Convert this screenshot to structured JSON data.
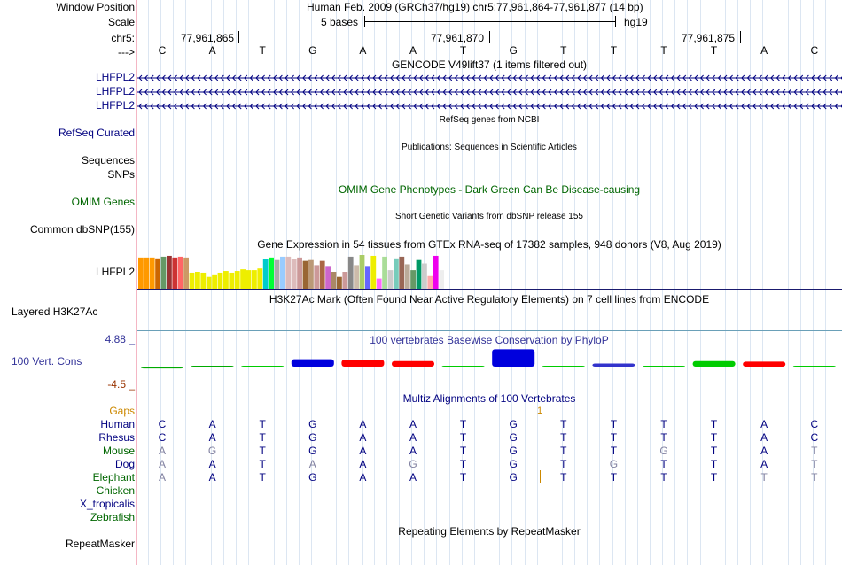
{
  "header": {
    "window_position_label": "Window Position",
    "scale_label": "Scale",
    "chrom_label": "chr5:",
    "arrow_label": "--->",
    "window_position_value": "Human Feb. 2009 (GRCh37/hg19)   chr5:77,961,864-77,961,877 (14 bp)",
    "scale_value": "5 bases",
    "assembly": "hg19",
    "coordinates": [
      "77,961,865",
      "77,961,870",
      "77,961,875"
    ]
  },
  "reference_bases": [
    "C",
    "A",
    "T",
    "G",
    "A",
    "A",
    "T",
    "G",
    "T",
    "T",
    "T",
    "T",
    "A",
    "C"
  ],
  "tracks": {
    "gencode": {
      "title": "GENCODE V49lift37 (1 items filtered out)",
      "items": [
        "LHFPL2",
        "LHFPL2",
        "LHFPL2"
      ]
    },
    "refseq": {
      "title": "RefSeq genes from NCBI",
      "label": "RefSeq Curated"
    },
    "publications": {
      "title": "Publications: Sequences in Scientific Articles",
      "label1": "Sequences",
      "label2": "SNPs"
    },
    "omim": {
      "title": "OMIM Gene Phenotypes - Dark Green Can Be Disease-causing",
      "label": "OMIM Genes"
    },
    "dbsnp": {
      "title": "Short Genetic Variants from dbSNP release 155",
      "label": "Common dbSNP(155)"
    },
    "gtex": {
      "title": "Gene Expression in 54 tissues from GTEx RNA-seq of 17382 samples, 948 donors (V8, Aug 2019)",
      "label": "LHFPL2",
      "bar_colors": [
        "#ff9900",
        "#ff9900",
        "#ff9900",
        "#cc6600",
        "#669966",
        "#993333",
        "#cc3333",
        "#ff6666",
        "#cc9966",
        "#eeee00",
        "#eeee00",
        "#eeee00",
        "#eeee00",
        "#eeee00",
        "#eeee00",
        "#eeee00",
        "#eeee00",
        "#eeee00",
        "#eeee00",
        "#eeee00",
        "#eeee00",
        "#eeee00",
        "#00cccc",
        "#00ff33",
        "#aaaaaa",
        "#99ccff",
        "#ddbbbb",
        "#ddbbbb",
        "#cc9999",
        "#996633",
        "#bb9977",
        "#cc9999",
        "#aa6644",
        "#cc66cc",
        "#aa8866",
        "#996633",
        "#cc9999",
        "#888888",
        "#ccbbaa",
        "#aacc66",
        "#6666ff",
        "#eeee00",
        "#ff66ff",
        "#aadd99",
        "#cccccc",
        "#77ccbb",
        "#996655",
        "#bbaa99",
        "#669966",
        "#009966",
        "#cccccc",
        "#ffaaaa",
        "#ee00ee",
        "#eeeeee"
      ],
      "bar_values": [
        37,
        37,
        37,
        36,
        38,
        39,
        37,
        38,
        37,
        19,
        20,
        19,
        14,
        17,
        19,
        21,
        19,
        21,
        23,
        22,
        22,
        24,
        35,
        37,
        34,
        38,
        38,
        35,
        37,
        33,
        34,
        28,
        33,
        27,
        20,
        14,
        20,
        38,
        28,
        40,
        27,
        39,
        12,
        38,
        22,
        36,
        38,
        29,
        22,
        34,
        30,
        15,
        39,
        22
      ]
    },
    "h3k27ac": {
      "title": "H3K27Ac Mark (Often Found Near Active Regulatory Elements) on 7 cell lines from ENCODE",
      "label": "Layered H3K27Ac"
    },
    "phylop": {
      "title": "100 vertebrates Basewise Conservation by PhyloP",
      "label": "100 Vert. Cons",
      "max_label": "4.88 _",
      "min_label": "-4.5 _",
      "scores": [
        -0.3,
        0.1,
        0.15,
        1.2,
        1.1,
        0.9,
        0.15,
        2.8,
        0.1,
        0.5,
        0.1,
        0.9,
        0.8,
        0.1
      ],
      "colors": [
        "#00aa00",
        "#00aa00",
        "#00cc00",
        "#0000dd",
        "#ff0000",
        "#ff0000",
        "#00cc00",
        "#0000dd",
        "#00cc00",
        "#3333cc",
        "#00cc00",
        "#00cc00",
        "#ff0000",
        "#00cc00"
      ]
    },
    "multiz": {
      "title": "Multiz Alignments of 100 Vertebrates",
      "gaps_label": "Gaps",
      "gap_marker": "1",
      "species": [
        {
          "name": "Human",
          "bases": [
            "C",
            "A",
            "T",
            "G",
            "A",
            "A",
            "T",
            "G",
            "T",
            "T",
            "T",
            "T",
            "A",
            "C"
          ]
        },
        {
          "name": "Rhesus",
          "bases": [
            "C",
            "A",
            "T",
            "G",
            "A",
            "A",
            "T",
            "G",
            "T",
            "T",
            "T",
            "T",
            "A",
            "C"
          ]
        },
        {
          "name": "Mouse",
          "bases": [
            "A",
            "G",
            "T",
            "G",
            "A",
            "A",
            "T",
            "G",
            "T",
            "T",
            "G",
            "T",
            "A",
            "T"
          ]
        },
        {
          "name": "Dog",
          "bases": [
            "A",
            "A",
            "T",
            "A",
            "A",
            "G",
            "T",
            "G",
            "T",
            "G",
            "T",
            "T",
            "A",
            "T"
          ]
        },
        {
          "name": "Elephant",
          "bases": [
            "A",
            "A",
            "T",
            "G",
            "A",
            "A",
            "T",
            "G",
            "T",
            "T",
            "T",
            "T",
            "T",
            "T"
          ]
        },
        {
          "name": "Chicken",
          "bases": []
        },
        {
          "name": "X_tropicalis",
          "bases": []
        },
        {
          "name": "Zebrafish",
          "bases": []
        }
      ]
    },
    "repeatmasker": {
      "title": "Repeating Elements by RepeatMasker",
      "label": "RepeatMasker"
    }
  },
  "colors": {
    "track_label_blue": "#000080",
    "omim_green": "#006600",
    "gaps_orange": "#cc8800",
    "phylop_label": "#333399",
    "max_label": "#333399",
    "min_label": "#993300",
    "mismatch_gray": "#8080a0"
  }
}
